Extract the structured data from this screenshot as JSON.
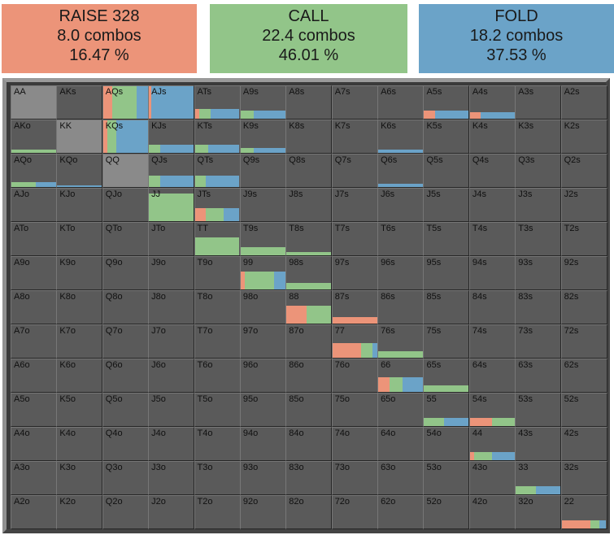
{
  "summary": {
    "raise": {
      "title": "RAISE 328",
      "combos": "8.0 combos",
      "pct": "16.47 %"
    },
    "call": {
      "title": "CALL",
      "combos": "22.4 combos",
      "pct": "46.01 %"
    },
    "fold": {
      "title": "FOLD",
      "combos": "18.2 combos",
      "pct": "37.53 %"
    }
  },
  "colors": {
    "raise": "#ec9479",
    "call": "#92c589",
    "fold": "#6ba3c8",
    "raise_header": "#ec9479",
    "call_header": "#92c589",
    "fold_header": "#6ba3c8",
    "cell_bg": "#5a5a5a",
    "filled_bg": "#8a8a8a"
  },
  "grid": {
    "rows": [
      [
        "AA",
        "AKs",
        "AQs",
        "AJs",
        "ATs",
        "A9s",
        "A8s",
        "A7s",
        "A6s",
        "A5s",
        "A4s",
        "A3s",
        "A2s"
      ],
      [
        "AKo",
        "KK",
        "KQs",
        "KJs",
        "KTs",
        "K9s",
        "K8s",
        "K7s",
        "K6s",
        "K5s",
        "K4s",
        "K3s",
        "K2s"
      ],
      [
        "AQo",
        "KQo",
        "QQ",
        "QJs",
        "QTs",
        "Q9s",
        "Q8s",
        "Q7s",
        "Q6s",
        "Q5s",
        "Q4s",
        "Q3s",
        "Q2s"
      ],
      [
        "AJo",
        "KJo",
        "QJo",
        "JJ",
        "JTs",
        "J9s",
        "J8s",
        "J7s",
        "J6s",
        "J5s",
        "J4s",
        "J3s",
        "J2s"
      ],
      [
        "ATo",
        "KTo",
        "QTo",
        "JTo",
        "TT",
        "T9s",
        "T8s",
        "T7s",
        "T6s",
        "T5s",
        "T4s",
        "T3s",
        "T2s"
      ],
      [
        "A9o",
        "K9o",
        "Q9o",
        "J9o",
        "T9o",
        "99",
        "98s",
        "97s",
        "96s",
        "95s",
        "94s",
        "93s",
        "92s"
      ],
      [
        "A8o",
        "K8o",
        "Q8o",
        "J8o",
        "T8o",
        "98o",
        "88",
        "87s",
        "86s",
        "85s",
        "84s",
        "83s",
        "82s"
      ],
      [
        "A7o",
        "K7o",
        "Q7o",
        "J7o",
        "T7o",
        "97o",
        "87o",
        "77",
        "76s",
        "75s",
        "74s",
        "73s",
        "72s"
      ],
      [
        "A6o",
        "K6o",
        "Q6o",
        "J6o",
        "T6o",
        "96o",
        "86o",
        "76o",
        "66",
        "65s",
        "64s",
        "63s",
        "62s"
      ],
      [
        "A5o",
        "K5o",
        "Q5o",
        "J5o",
        "T5o",
        "95o",
        "85o",
        "75o",
        "65o",
        "55",
        "54s",
        "53s",
        "52s"
      ],
      [
        "A4o",
        "K4o",
        "Q4o",
        "J4o",
        "T4o",
        "94o",
        "84o",
        "74o",
        "64o",
        "54o",
        "44",
        "43s",
        "42s"
      ],
      [
        "A3o",
        "K3o",
        "Q3o",
        "J3o",
        "T3o",
        "93o",
        "83o",
        "73o",
        "63o",
        "53o",
        "43o",
        "33",
        "32s"
      ],
      [
        "A2o",
        "K2o",
        "Q2o",
        "J2o",
        "T2o",
        "92o",
        "82o",
        "72o",
        "62o",
        "52o",
        "42o",
        "32o",
        "22"
      ]
    ]
  },
  "hands": {
    "AA": {
      "freq": 1.0,
      "raise": 0.0,
      "call": 0.0,
      "fold": 0.0
    },
    "AKs": {
      "freq": 0.0,
      "raise": 0.0,
      "call": 0.0,
      "fold": 0.0
    },
    "AQs": {
      "freq": 1.0,
      "raise": 0.2,
      "call": 0.55,
      "fold": 0.25
    },
    "AJs": {
      "freq": 1.0,
      "raise": 0.05,
      "call": 0.0,
      "fold": 0.95
    },
    "ATs": {
      "freq": 0.3,
      "raise": 0.1,
      "call": 0.25,
      "fold": 0.65
    },
    "A9s": {
      "freq": 0.25,
      "raise": 0.0,
      "call": 0.3,
      "fold": 0.7
    },
    "A5s": {
      "freq": 0.25,
      "raise": 0.25,
      "call": 0.0,
      "fold": 0.75
    },
    "A4s": {
      "freq": 0.2,
      "raise": 0.25,
      "call": 0.0,
      "fold": 0.75
    },
    "AKo": {
      "freq": 0.1,
      "raise": 0.0,
      "call": 1.0,
      "fold": 0.0
    },
    "KK": {
      "freq": 1.0,
      "raise": 0.0,
      "call": 0.0,
      "fold": 0.0
    },
    "KQs": {
      "freq": 1.0,
      "raise": 0.1,
      "call": 0.2,
      "fold": 0.7
    },
    "KJs": {
      "freq": 0.25,
      "raise": 0.0,
      "call": 0.25,
      "fold": 0.75
    },
    "KTs": {
      "freq": 0.25,
      "raise": 0.0,
      "call": 0.3,
      "fold": 0.7
    },
    "K9s": {
      "freq": 0.15,
      "raise": 0.0,
      "call": 0.3,
      "fold": 0.7
    },
    "K6s": {
      "freq": 0.1,
      "raise": 0.0,
      "call": 0.0,
      "fold": 1.0
    },
    "AQo": {
      "freq": 0.15,
      "raise": 0.0,
      "call": 0.55,
      "fold": 0.45
    },
    "KQo": {
      "freq": 0.05,
      "raise": 0.0,
      "call": 0.0,
      "fold": 1.0
    },
    "QQ": {
      "freq": 1.0,
      "raise": 0.0,
      "call": 0.0,
      "fold": 0.0
    },
    "QJs": {
      "freq": 0.35,
      "raise": 0.0,
      "call": 0.25,
      "fold": 0.75
    },
    "QTs": {
      "freq": 0.35,
      "raise": 0.0,
      "call": 0.25,
      "fold": 0.75
    },
    "Q6s": {
      "freq": 0.1,
      "raise": 0.0,
      "call": 0.0,
      "fold": 1.0
    },
    "JJ": {
      "freq": 0.85,
      "raise": 0.0,
      "call": 1.0,
      "fold": 0.0
    },
    "JTs": {
      "freq": 0.4,
      "raise": 0.25,
      "call": 0.4,
      "fold": 0.35
    },
    "TT": {
      "freq": 0.55,
      "raise": 0.0,
      "call": 1.0,
      "fold": 0.0
    },
    "T9s": {
      "freq": 0.25,
      "raise": 0.0,
      "call": 1.0,
      "fold": 0.0
    },
    "T8s": {
      "freq": 0.1,
      "raise": 0.0,
      "call": 1.0,
      "fold": 0.0
    },
    "99": {
      "freq": 0.55,
      "raise": 0.1,
      "call": 0.65,
      "fold": 0.25
    },
    "98s": {
      "freq": 0.2,
      "raise": 0.0,
      "call": 1.0,
      "fold": 0.0
    },
    "88": {
      "freq": 0.55,
      "raise": 0.45,
      "call": 0.55,
      "fold": 0.0
    },
    "87s": {
      "freq": 0.2,
      "raise": 1.0,
      "call": 0.0,
      "fold": 0.0
    },
    "77": {
      "freq": 0.45,
      "raise": 0.65,
      "call": 0.25,
      "fold": 0.1
    },
    "76s": {
      "freq": 0.2,
      "raise": 0.0,
      "call": 1.0,
      "fold": 0.0
    },
    "66": {
      "freq": 0.45,
      "raise": 0.25,
      "call": 0.3,
      "fold": 0.45
    },
    "65s": {
      "freq": 0.2,
      "raise": 0.0,
      "call": 1.0,
      "fold": 0.0
    },
    "55": {
      "freq": 0.25,
      "raise": 0.0,
      "call": 0.45,
      "fold": 0.55
    },
    "54s": {
      "freq": 0.25,
      "raise": 0.5,
      "call": 0.5,
      "fold": 0.0
    },
    "44": {
      "freq": 0.25,
      "raise": 0.1,
      "call": 0.4,
      "fold": 0.5
    },
    "33": {
      "freq": 0.25,
      "raise": 0.0,
      "call": 0.45,
      "fold": 0.55
    },
    "22": {
      "freq": 0.25,
      "raise": 0.65,
      "call": 0.2,
      "fold": 0.15
    }
  }
}
